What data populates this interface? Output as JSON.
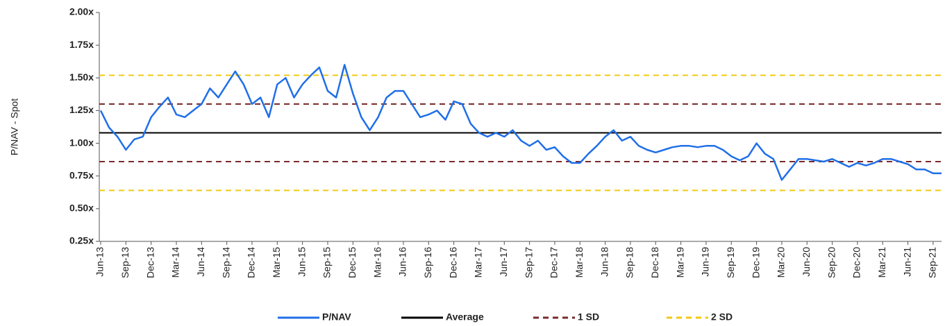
{
  "chart_data": {
    "type": "line",
    "y_label": "P/NAV - Spot",
    "ylim": [
      0.25,
      2.0
    ],
    "yticks": [
      {
        "value": 0.25,
        "label": "0.25x"
      },
      {
        "value": 0.5,
        "label": "0.50x"
      },
      {
        "value": 0.75,
        "label": "0.75x"
      },
      {
        "value": 1.0,
        "label": "1.00x"
      },
      {
        "value": 1.25,
        "label": "1.25x"
      },
      {
        "value": 1.5,
        "label": "1.50x"
      },
      {
        "value": 1.75,
        "label": "1.75x"
      },
      {
        "value": 2.0,
        "label": "2.00x"
      }
    ],
    "categories": [
      "Jun-13",
      null,
      null,
      "Sep-13",
      null,
      null,
      "Dec-13",
      null,
      null,
      "Mar-14",
      null,
      null,
      "Jun-14",
      null,
      null,
      "Sep-14",
      null,
      null,
      "Dec-14",
      null,
      null,
      "Mar-15",
      null,
      null,
      "Jun-15",
      null,
      null,
      "Sep-15",
      null,
      null,
      "Dec-15",
      null,
      null,
      "Mar-16",
      null,
      null,
      "Jun-16",
      null,
      null,
      "Sep-16",
      null,
      null,
      "Dec-16",
      null,
      null,
      "Mar-17",
      null,
      null,
      "Jun-17",
      null,
      null,
      "Sep-17",
      null,
      null,
      "Dec-17",
      null,
      null,
      "Mar-18",
      null,
      null,
      "Jun-18",
      null,
      null,
      "Sep-18",
      null,
      null,
      "Dec-18",
      null,
      null,
      "Mar-19",
      null,
      null,
      "Jun-19",
      null,
      null,
      "Sep-19",
      null,
      null,
      "Dec-19",
      null,
      null,
      "Mar-20",
      null,
      null,
      "Jun-20",
      null,
      null,
      "Sep-20",
      null,
      null,
      "Dec-20",
      null,
      null,
      "Mar-21",
      null,
      null,
      "Jun-21",
      null,
      null,
      "Sep-21",
      null
    ],
    "series": [
      {
        "name": "P/NAV",
        "color": "#1f6fe8",
        "values": [
          1.25,
          1.12,
          1.05,
          0.95,
          1.03,
          1.05,
          1.2,
          1.28,
          1.35,
          1.22,
          1.2,
          1.25,
          1.3,
          1.42,
          1.35,
          1.45,
          1.55,
          1.45,
          1.3,
          1.35,
          1.2,
          1.45,
          1.5,
          1.35,
          1.45,
          1.52,
          1.58,
          1.4,
          1.35,
          1.6,
          1.38,
          1.2,
          1.1,
          1.2,
          1.35,
          1.4,
          1.4,
          1.3,
          1.2,
          1.22,
          1.25,
          1.18,
          1.32,
          1.3,
          1.15,
          1.08,
          1.05,
          1.08,
          1.05,
          1.1,
          1.02,
          0.98,
          1.02,
          0.95,
          0.97,
          0.9,
          0.85,
          0.85,
          0.92,
          0.98,
          1.05,
          1.1,
          1.02,
          1.05,
          0.98,
          0.95,
          0.93,
          0.95,
          0.97,
          0.98,
          0.98,
          0.97,
          0.98,
          0.98,
          0.95,
          0.9,
          0.87,
          0.9,
          1.0,
          0.92,
          0.88,
          0.72,
          0.8,
          0.88,
          0.88,
          0.87,
          0.86,
          0.88,
          0.85,
          0.82,
          0.85,
          0.83,
          0.85,
          0.88,
          0.88,
          0.86,
          0.84,
          0.8,
          0.8,
          0.77,
          0.77
        ]
      }
    ],
    "reference_lines": [
      {
        "name": "Average",
        "color": "#000000",
        "dashed": false,
        "values": [
          1.08
        ]
      },
      {
        "name": "1 SD",
        "color": "#7b2a2a",
        "dashed": true,
        "values": [
          1.3,
          0.86
        ]
      },
      {
        "name": "2 SD",
        "color": "#f2c811",
        "dashed": true,
        "values": [
          1.52,
          0.64
        ]
      }
    ]
  }
}
